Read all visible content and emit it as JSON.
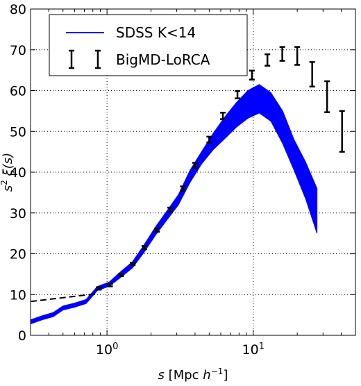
{
  "chart_data": {
    "type": "line",
    "xscale": "log",
    "xlim": [
      0.3,
      50
    ],
    "ylim": [
      0,
      80
    ],
    "grid": true,
    "legend_location": "upper-left",
    "xlabel_parts": {
      "s": "s",
      "bracket_open": "[Mpc",
      "h": "h",
      "exp": "−1",
      "bracket_close": "]"
    },
    "ylabel_parts": {
      "s": "s",
      "exp": "2",
      "xi": "ξ(s)"
    },
    "x_ticks": [
      {
        "value": 1,
        "base": "10",
        "exp": "0"
      },
      {
        "value": 10,
        "base": "10",
        "exp": "1"
      }
    ],
    "y_ticks": [
      0,
      10,
      20,
      30,
      40,
      50,
      60,
      70,
      80
    ],
    "series": [
      {
        "name": "SDSS K<14",
        "style": "band",
        "color": "#0000ff",
        "x": [
          0.3,
          0.36,
          0.43,
          0.5,
          0.6,
          0.72,
          0.86,
          1.03,
          1.24,
          1.49,
          1.78,
          2.14,
          2.57,
          3.08,
          3.7,
          4.43,
          5.32,
          6.38,
          7.65,
          9.18,
          11.0,
          13.2,
          15.9,
          19.0,
          22.8,
          27.3
        ],
        "lower": [
          2.8,
          3.8,
          4.6,
          6.2,
          6.9,
          7.8,
          11.0,
          12.0,
          14.2,
          16.5,
          20.2,
          24.5,
          28.3,
          32.0,
          37.5,
          42.0,
          45.5,
          48.2,
          51.0,
          53.2,
          54.5,
          52.5,
          47.0,
          40.5,
          33.5,
          25.0
        ],
        "upper": [
          3.8,
          4.8,
          5.6,
          7.2,
          7.9,
          8.8,
          12.0,
          13.0,
          15.6,
          18.0,
          22.0,
          26.5,
          30.5,
          34.5,
          40.5,
          45.0,
          49.5,
          53.5,
          57.0,
          60.0,
          61.5,
          59.5,
          55.0,
          48.0,
          42.5,
          36.0
        ]
      },
      {
        "name": "BigMD-LoRCA",
        "style": "errorbar",
        "color": "#000000",
        "points": [
          {
            "x": 0.88,
            "y": 11.5,
            "err": 0.3
          },
          {
            "x": 1.05,
            "y": 12.3,
            "err": 0.3
          },
          {
            "x": 1.25,
            "y": 14.8,
            "err": 0.3
          },
          {
            "x": 1.5,
            "y": 17.5,
            "err": 0.3
          },
          {
            "x": 1.8,
            "y": 21.5,
            "err": 0.4
          },
          {
            "x": 2.2,
            "y": 25.8,
            "err": 0.4
          },
          {
            "x": 2.7,
            "y": 30.8,
            "err": 0.5
          },
          {
            "x": 3.3,
            "y": 36.0,
            "err": 0.5
          },
          {
            "x": 4.0,
            "y": 41.7,
            "err": 0.6
          },
          {
            "x": 5.0,
            "y": 48.0,
            "err": 0.7
          },
          {
            "x": 6.2,
            "y": 53.8,
            "err": 0.8
          },
          {
            "x": 7.8,
            "y": 59.0,
            "err": 0.9
          },
          {
            "x": 9.8,
            "y": 63.8,
            "err": 1.1
          },
          {
            "x": 12.5,
            "y": 67.5,
            "err": 1.4
          },
          {
            "x": 15.8,
            "y": 69.0,
            "err": 1.7
          },
          {
            "x": 20.0,
            "y": 68.5,
            "err": 2.2
          },
          {
            "x": 25.3,
            "y": 64.0,
            "err": 3.0
          },
          {
            "x": 32.0,
            "y": 58.5,
            "err": 3.8
          },
          {
            "x": 40.5,
            "y": 50.0,
            "err": 5.0
          }
        ],
        "dashed_extension": {
          "x": [
            0.3,
            0.86
          ],
          "y": [
            8.3,
            10.2
          ]
        }
      }
    ]
  }
}
